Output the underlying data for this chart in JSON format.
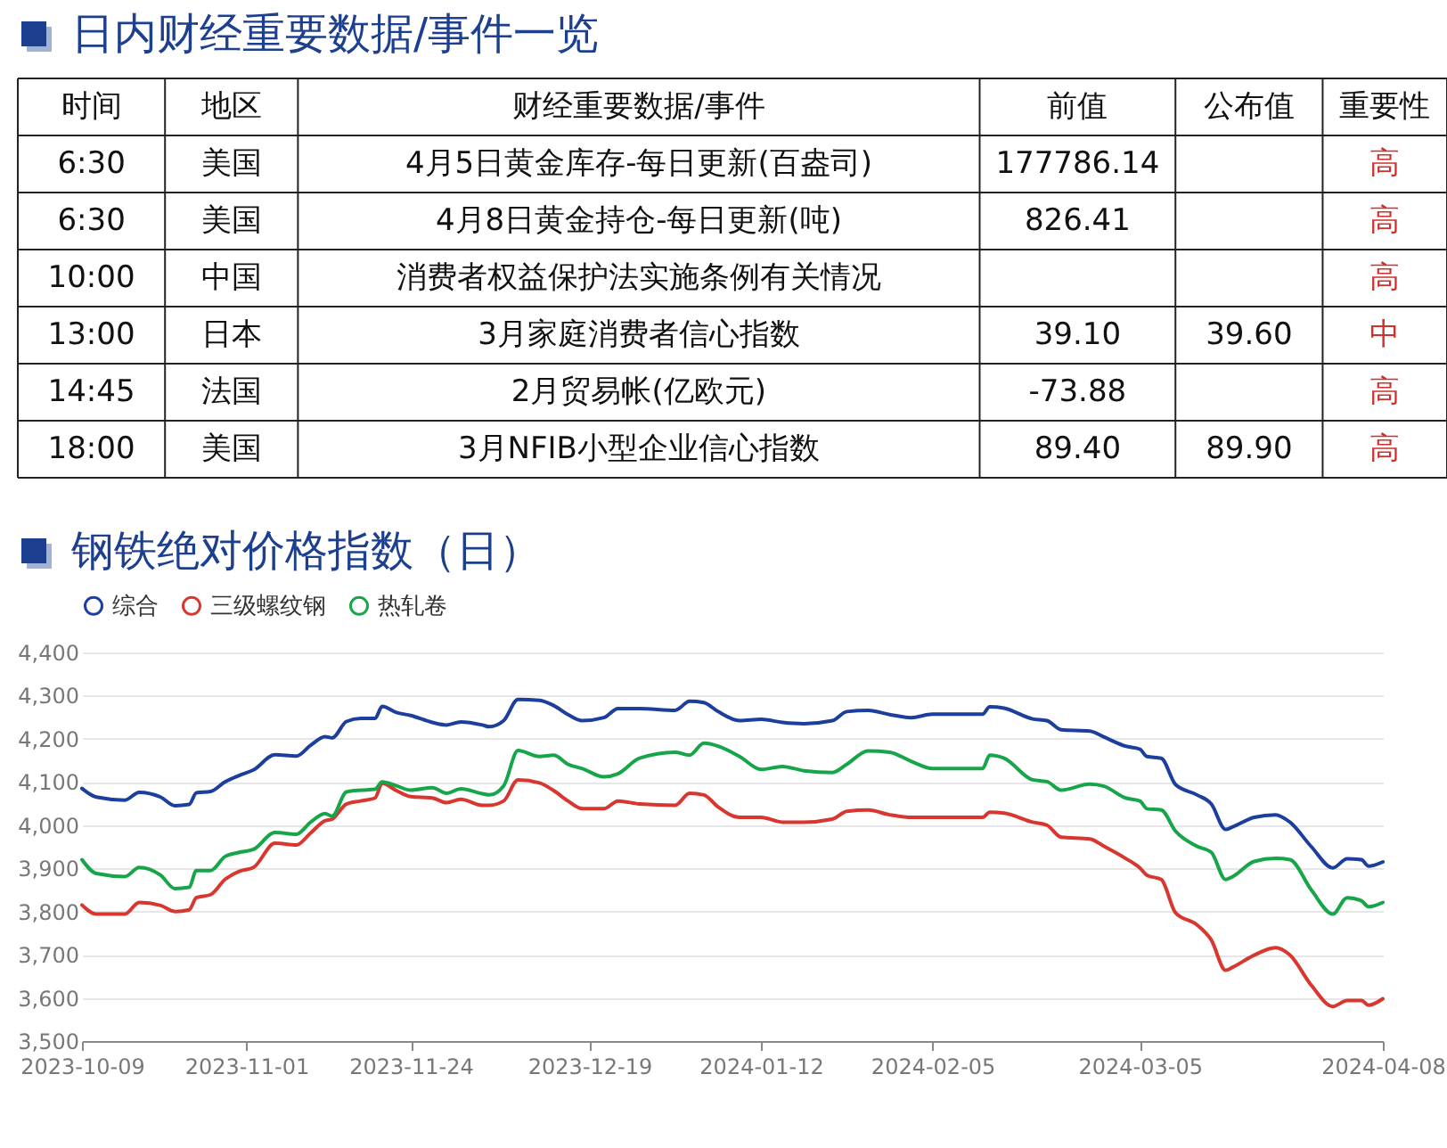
{
  "chart_data": [
    {
      "type": "other",
      "title": "日内财经重要数据/事件一览",
      "categories": [
        "时间",
        "地区",
        "财经重要数据/事件",
        "前值",
        "公布值",
        "重要性"
      ],
      "annotations": [
        "6:30",
        "美国",
        "4月5日黄金库存-每日更新(百盎司)",
        "177786.14",
        null,
        "高",
        "6:30",
        "美国",
        "4月8日黄金持仓-每日更新(吨)",
        "826.41",
        null,
        "高",
        "10:00",
        "中国",
        "消费者权益保护法实施条例有关情况",
        null,
        null,
        "高",
        "13:00",
        "日本",
        "3月家庭消费者信心指数",
        "39.10",
        "39.60",
        "中",
        "14:45",
        "法国",
        "2月贸易帐(亿欧元)",
        "-73.88",
        null,
        "高",
        "18:00",
        "美国",
        "3月NFIB小型企业信心指数",
        "89.40",
        "89.90",
        "高"
      ]
    },
    {
      "type": "line",
      "title": "钢铁绝对价格指数（日）",
      "x": [
        "2023-10-09",
        "2023-10-11",
        "2023-10-15",
        "2023-10-17",
        "2023-10-20",
        "2023-10-22",
        "2023-10-24",
        "2023-10-25",
        "2023-10-27",
        "2023-10-29",
        "2023-10-31",
        "2023-11-02",
        "2023-11-05",
        "2023-11-08",
        "2023-11-10",
        "2023-11-12",
        "2023-11-13",
        "2023-11-15",
        "2023-11-17",
        "2023-11-19",
        "2023-11-20",
        "2023-11-22",
        "2023-11-24",
        "2023-11-27",
        "2023-11-29",
        "2023-12-01",
        "2023-12-04",
        "2023-12-05",
        "2023-12-07",
        "2023-12-09",
        "2023-12-12",
        "2023-12-14",
        "2023-12-16",
        "2023-12-18",
        "2023-12-21",
        "2023-12-23",
        "2023-12-26",
        "2023-12-31",
        "2024-01-02",
        "2024-01-04",
        "2024-01-06",
        "2024-01-09",
        "2024-01-12",
        "2024-01-15",
        "2024-01-18",
        "2024-01-22",
        "2024-01-24",
        "2024-01-27",
        "2024-01-30",
        "2024-02-02",
        "2024-02-05",
        "2024-02-12",
        "2024-02-13",
        "2024-02-15",
        "2024-02-19",
        "2024-02-21",
        "2024-02-23",
        "2024-02-27",
        "2024-02-29",
        "2024-03-03",
        "2024-03-05",
        "2024-03-06",
        "2024-03-08",
        "2024-03-10",
        "2024-03-13",
        "2024-03-15",
        "2024-03-17",
        "2024-03-18",
        "2024-03-21",
        "2024-03-24",
        "2024-03-26",
        "2024-03-29",
        "2024-04-01",
        "2024-04-03",
        "2024-04-05",
        "2024-04-06",
        "2024-04-08"
      ],
      "series": [
        {
          "name": "综合",
          "color": "#1c3f9e",
          "values": [
            4085,
            4065,
            4058,
            4076,
            4065,
            4045,
            4048,
            4075,
            4078,
            4100,
            4115,
            4128,
            4163,
            4160,
            4185,
            4205,
            4202,
            4240,
            4247,
            4247,
            4275,
            4261,
            4254,
            4238,
            4232,
            4239,
            4232,
            4228,
            4242,
            4291,
            4289,
            4277,
            4256,
            4242,
            4249,
            4270,
            4270,
            4266,
            4287,
            4284,
            4263,
            4242,
            4245,
            4238,
            4235,
            4242,
            4263,
            4266,
            4256,
            4249,
            4257,
            4257,
            4274,
            4271,
            4246,
            4242,
            4221,
            4218,
            4204,
            4183,
            4176,
            4159,
            4155,
            4094,
            4070,
            4049,
            3990,
            3996,
            4018,
            4024,
            4007,
            3950,
            3901,
            3922,
            3920,
            3905,
            3915
          ]
        },
        {
          "name": "三级螺纹钢",
          "color": "#d8372f",
          "values": [
            3815,
            3794,
            3794,
            3821,
            3814,
            3800,
            3804,
            3832,
            3839,
            3874,
            3893,
            3902,
            3958,
            3954,
            3982,
            4010,
            4014,
            4049,
            4056,
            4063,
            4097,
            4080,
            4066,
            4063,
            4052,
            4060,
            4046,
            4046,
            4056,
            4105,
            4098,
            4080,
            4056,
            4038,
            4038,
            4056,
            4049,
            4046,
            4074,
            4070,
            4042,
            4018,
            4018,
            4007,
            4007,
            4014,
            4032,
            4035,
            4024,
            4018,
            4018,
            4018,
            4030,
            4028,
            4007,
            4000,
            3972,
            3968,
            3951,
            3923,
            3901,
            3884,
            3874,
            3797,
            3769,
            3734,
            3664,
            3671,
            3699,
            3716,
            3699,
            3629,
            3580,
            3594,
            3594,
            3583,
            3598
          ]
        },
        {
          "name": "热轧卷",
          "color": "#17a54a",
          "values": [
            3920,
            3888,
            3881,
            3902,
            3884,
            3853,
            3856,
            3895,
            3895,
            3927,
            3937,
            3944,
            3983,
            3979,
            4007,
            4027,
            4021,
            4077,
            4081,
            4083,
            4100,
            4091,
            4081,
            4087,
            4074,
            4084,
            4073,
            4070,
            4091,
            4173,
            4159,
            4162,
            4141,
            4131,
            4112,
            4119,
            4155,
            4169,
            4162,
            4190,
            4183,
            4159,
            4129,
            4136,
            4126,
            4122,
            4141,
            4172,
            4169,
            4148,
            4131,
            4131,
            4162,
            4155,
            4105,
            4101,
            4081,
            4095,
            4090,
            4063,
            4056,
            4038,
            4035,
            3986,
            3951,
            3937,
            3874,
            3881,
            3916,
            3923,
            3920,
            3850,
            3794,
            3832,
            3825,
            3811,
            3821
          ]
        }
      ],
      "xlim": [
        "2023-10-09",
        "2024-04-08"
      ],
      "xticks": [
        "2023-10-09",
        "2023-11-01",
        "2023-11-24",
        "2023-12-19",
        "2024-01-12",
        "2024-02-05",
        "2024-03-05",
        "2024-04-08"
      ],
      "ylim": [
        3500,
        4400
      ],
      "yticks": [
        {
          "value": 3500,
          "label": "3,500"
        },
        {
          "value": 3600,
          "label": "3,600"
        },
        {
          "value": 3700,
          "label": "3,700"
        },
        {
          "value": 3800,
          "label": "3,800"
        },
        {
          "value": 3900,
          "label": "3,900"
        },
        {
          "value": 4000,
          "label": "4,000"
        },
        {
          "value": 4100,
          "label": "4,100"
        },
        {
          "value": 4200,
          "label": "4,200"
        },
        {
          "value": 4300,
          "label": "4,300"
        },
        {
          "value": 4400,
          "label": "4,400"
        }
      ],
      "grid": "y",
      "legend": "top"
    }
  ]
}
